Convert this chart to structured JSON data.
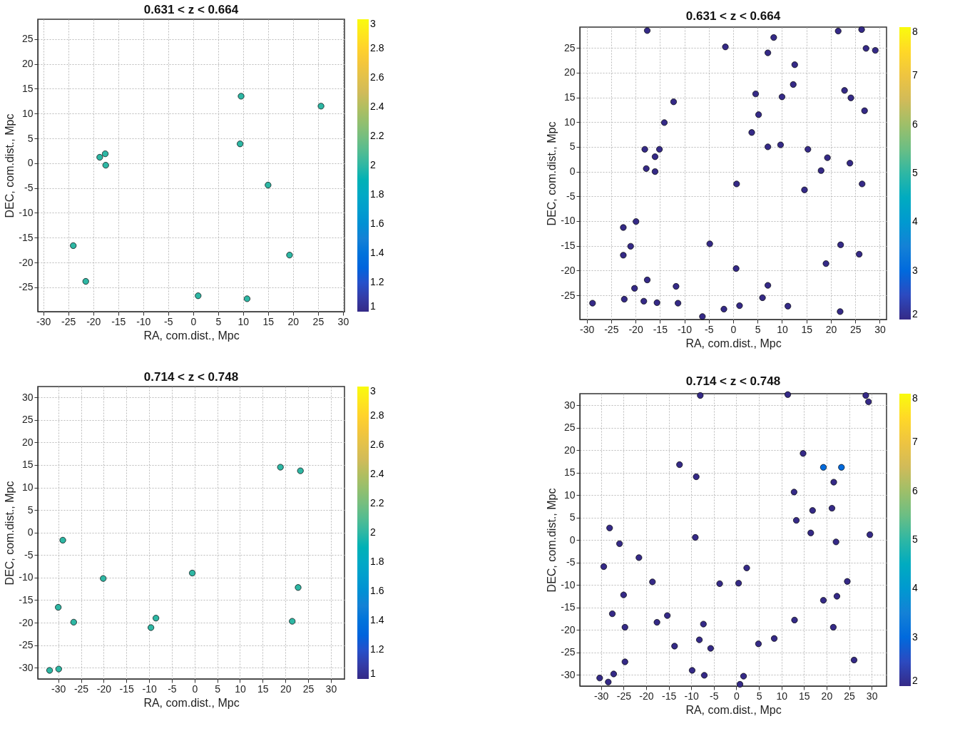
{
  "chart_data": [
    {
      "type": "scatter",
      "title": "0.631 < z < 0.664",
      "xlabel": "RA, com.dist., Mpc",
      "ylabel": "DEC, com.dist., Mpc",
      "xlim": [
        -31.1,
        30.3
      ],
      "ylim": [
        -29.9,
        29
      ],
      "xticks": [
        -30,
        -25,
        -20,
        -15,
        -10,
        -5,
        0,
        5,
        10,
        15,
        20,
        25,
        30
      ],
      "yticks": [
        -25,
        -20,
        -15,
        -10,
        -5,
        0,
        5,
        10,
        15,
        20,
        25
      ],
      "clim": [
        1,
        3
      ],
      "cticks": [
        1,
        1.2,
        1.4,
        1.6,
        1.8,
        2,
        2.2,
        2.4,
        2.6,
        2.8,
        3
      ],
      "grid": true,
      "marker": "circle",
      "x": [
        9.6,
        25.6,
        9.4,
        -18.7,
        -17.6,
        -17.5,
        15.0,
        -24.0,
        19.3,
        -21.5,
        1.0,
        10.8
      ],
      "values": [
        13.5,
        11.5,
        3.9,
        1.2,
        1.9,
        -0.4,
        -4.4,
        -16.6,
        -18.5,
        -23.8,
        -26.7,
        -27.3
      ],
      "cvalues": [
        2,
        2,
        2,
        2,
        2,
        2,
        2,
        2,
        2,
        2,
        2,
        2
      ]
    },
    {
      "type": "scatter",
      "title": "0.631 < z < 0.664",
      "xlabel": "RA, com.dist., Mpc",
      "ylabel": "DEC, com.dist., Mpc",
      "xlim": [
        -31.4,
        31.4
      ],
      "ylim": [
        -29.9,
        29.2
      ],
      "xticks": [
        -30,
        -25,
        -20,
        -15,
        -10,
        -5,
        0,
        5,
        10,
        15,
        20,
        25,
        30
      ],
      "yticks": [
        -25,
        -20,
        -15,
        -10,
        -5,
        0,
        5,
        10,
        15,
        20,
        25
      ],
      "clim": [
        2,
        8
      ],
      "cticks": [
        2,
        3,
        4,
        5,
        6,
        7,
        8
      ],
      "grid": true,
      "marker": "circle",
      "x": [
        21.5,
        26.3,
        -17.6,
        8.3,
        -1.6,
        27.2,
        29.1,
        7.1,
        12.6,
        12.3,
        4.6,
        10.0,
        22.8,
        24.1,
        26.9,
        -12.2,
        5.2,
        -14.1,
        3.8,
        9.7,
        7.1,
        15.3,
        -16.0,
        -18.1,
        -15.1,
        19.3,
        23.9,
        -17.8,
        -16.0,
        18.0,
        0.7,
        26.4,
        14.6,
        -19.9,
        -22.5,
        -4.8,
        22.0,
        -21.0,
        -22.5,
        25.8,
        19.0,
        0.6,
        -17.6,
        -20.2,
        7.1,
        -11.7,
        -22.3,
        -18.3,
        6.0,
        -28.8,
        -11.3,
        -15.6,
        1.3,
        -1.9,
        11.2,
        21.9,
        -6.3
      ],
      "values": [
        28.4,
        28.7,
        28.5,
        27.1,
        25.2,
        24.9,
        24.5,
        24.0,
        21.6,
        17.6,
        15.7,
        15.1,
        16.4,
        14.9,
        12.3,
        14.1,
        11.5,
        9.9,
        7.9,
        5.4,
        5.0,
        4.5,
        3.0,
        4.5,
        4.5,
        2.8,
        1.7,
        0.6,
        0.0,
        0.2,
        -2.5,
        -2.5,
        -3.7,
        -10.1,
        -11.3,
        -14.6,
        -14.8,
        -15.1,
        -16.9,
        -16.7,
        -18.6,
        -19.6,
        -21.9,
        -23.6,
        -23.0,
        -23.2,
        -25.8,
        -26.2,
        -25.5,
        -26.6,
        -26.6,
        -26.5,
        -27.1,
        -27.8,
        -27.2,
        -28.3,
        -29.3
      ],
      "cvalues": [
        2,
        2,
        2,
        2,
        2,
        2,
        2,
        2,
        2,
        2,
        2,
        2,
        2,
        2,
        2,
        2,
        2,
        2,
        2,
        2,
        2,
        2,
        2,
        2,
        2,
        2,
        2,
        2,
        2,
        2,
        2,
        2,
        2,
        2,
        2,
        2,
        2,
        2,
        2,
        2,
        2,
        2,
        2,
        2,
        2,
        2,
        2,
        2,
        2,
        2,
        2,
        2,
        2,
        2,
        2,
        2,
        2
      ]
    },
    {
      "type": "scatter",
      "title": "0.714 < z < 0.748",
      "xlabel": "RA, com.dist., Mpc",
      "ylabel": "DEC, com.dist., Mpc",
      "xlim": [
        -34.5,
        33
      ],
      "ylim": [
        -32.5,
        32.4
      ],
      "xticks": [
        -30,
        -25,
        -20,
        -15,
        -10,
        -5,
        0,
        5,
        10,
        15,
        20,
        25,
        30
      ],
      "yticks": [
        -30,
        -25,
        -20,
        -15,
        -10,
        -5,
        0,
        5,
        10,
        15,
        20,
        25,
        30
      ],
      "clim": [
        1,
        3
      ],
      "cticks": [
        1,
        1.2,
        1.4,
        1.6,
        1.8,
        2,
        2.2,
        2.4,
        2.6,
        2.8,
        3
      ],
      "grid": true,
      "marker": "circle",
      "x": [
        18.9,
        23.3,
        -29.0,
        -20.1,
        -0.5,
        22.8,
        -30.0,
        -26.6,
        -8.5,
        -9.6,
        21.5,
        -29.9,
        -31.9
      ],
      "values": [
        14.5,
        13.7,
        -1.7,
        -10.2,
        -9.0,
        -12.2,
        -16.6,
        -19.9,
        -19.0,
        -21.1,
        -19.7,
        -30.3,
        -30.6
      ],
      "cvalues": [
        2,
        2,
        2,
        2,
        2,
        2,
        2,
        2,
        2,
        2,
        2,
        2,
        2
      ]
    },
    {
      "type": "scatter",
      "title": "0.714 < z < 0.748",
      "xlabel": "RA, com.dist., Mpc",
      "ylabel": "DEC, com.dist., Mpc",
      "xlim": [
        -34.7,
        33.3
      ],
      "ylim": [
        -32.5,
        32.6
      ],
      "xticks": [
        -30,
        -25,
        -20,
        -15,
        -10,
        -5,
        0,
        5,
        10,
        15,
        20,
        25,
        30
      ],
      "yticks": [
        -30,
        -25,
        -20,
        -15,
        -10,
        -5,
        0,
        5,
        10,
        15,
        20,
        25,
        30
      ],
      "clim": [
        2,
        8
      ],
      "cticks": [
        2,
        3,
        4,
        5,
        6,
        7,
        8
      ],
      "grid": true,
      "marker": "circle",
      "x": [
        -8.0,
        11.4,
        28.7,
        29.3,
        14.8,
        19.3,
        23.3,
        21.6,
        -12.6,
        -8.9,
        12.8,
        21.2,
        16.9,
        13.3,
        16.5,
        22.1,
        29.6,
        -9.1,
        -28.1,
        -25.9,
        -21.6,
        -29.4,
        2.3,
        -18.6,
        -3.7,
        0.5,
        24.6,
        22.3,
        19.3,
        -25.0,
        -27.5,
        -24.7,
        -15.3,
        -17.6,
        -7.3,
        12.9,
        21.5,
        8.4,
        4.9,
        -13.7,
        -5.7,
        -24.7,
        26.1,
        -9.8,
        -7.1,
        1.6,
        0.8,
        -27.2,
        -28.4,
        -30.3,
        -8.2
      ],
      "values": [
        32.2,
        32.4,
        32.2,
        30.8,
        19.3,
        16.2,
        16.2,
        12.9,
        16.8,
        14.1,
        10.7,
        7.1,
        6.6,
        4.4,
        1.6,
        -0.4,
        1.2,
        0.6,
        2.7,
        -0.8,
        -3.9,
        -5.9,
        -6.2,
        -9.3,
        -9.7,
        -9.6,
        -9.2,
        -12.5,
        -13.4,
        -12.2,
        -16.4,
        -19.4,
        -16.8,
        -18.3,
        -18.7,
        -17.8,
        -19.4,
        -21.9,
        -23.1,
        -23.6,
        -24.1,
        -27.1,
        -26.7,
        -29.0,
        -30.1,
        -30.3,
        -32.1,
        -29.8,
        -31.6,
        -30.7,
        -22.2
      ],
      "cvalues": [
        2,
        2,
        2,
        2,
        2,
        3,
        3,
        2,
        2,
        2,
        2,
        2,
        2,
        2,
        2,
        2,
        2,
        2,
        2,
        2,
        2,
        2,
        2,
        2,
        2,
        2,
        2,
        2,
        2,
        2,
        2,
        2,
        2,
        2,
        2,
        2,
        2,
        2,
        2,
        2,
        2,
        2,
        2,
        2,
        2,
        2,
        2,
        2,
        2,
        2,
        2
      ]
    }
  ]
}
